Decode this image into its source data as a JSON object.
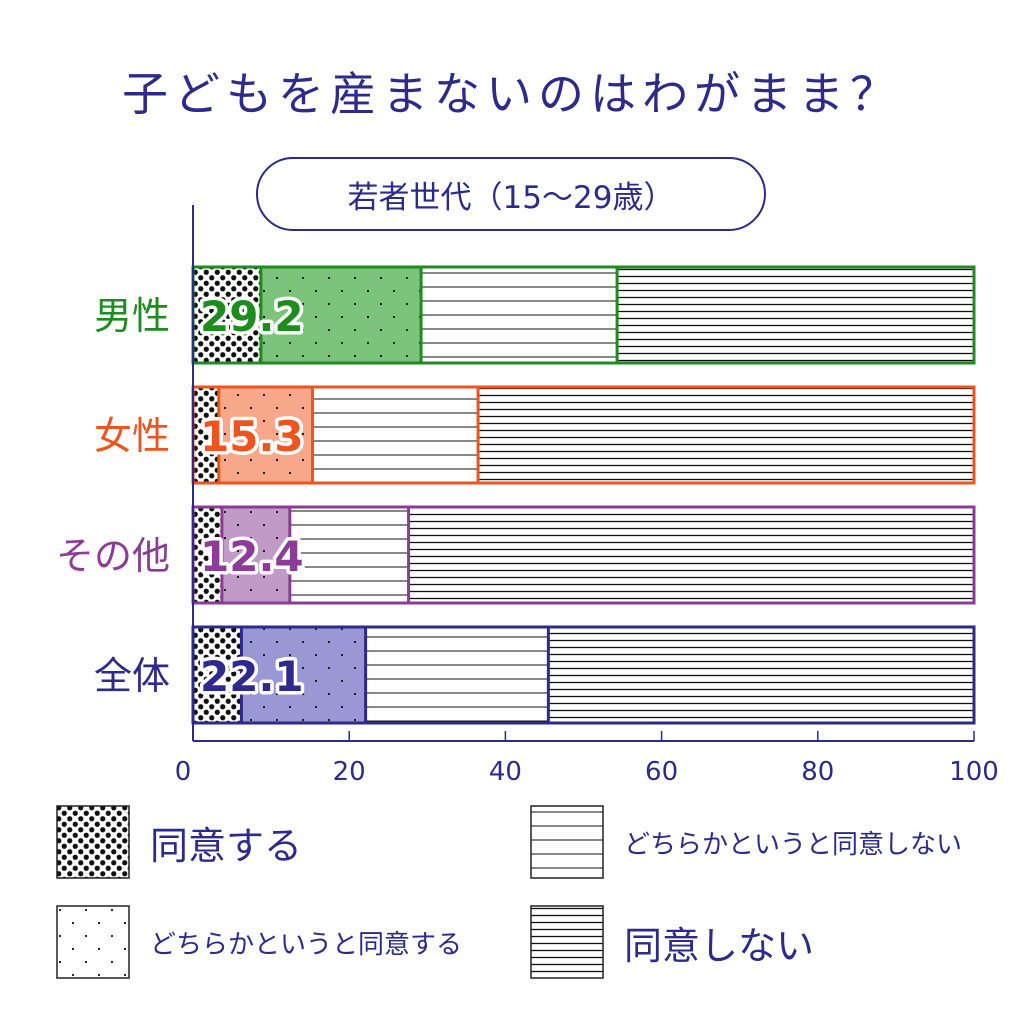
{
  "title": "子どもを産まないのはわがまま？",
  "chart_data": {
    "type": "bar",
    "stacked": true,
    "orientation": "horizontal",
    "subtitle": "若者世代（15～29歳）",
    "categories": [
      "男性",
      "女性",
      "その他",
      "全体"
    ],
    "category_colors": [
      "#1e8c1e",
      "#f0541e",
      "#8c3c96",
      "#2e2a8c"
    ],
    "category_fill_colors": [
      "#7cc47c",
      "#f7a88a",
      "#c29ac8",
      "#9a98d4"
    ],
    "series": [
      {
        "name": "同意する",
        "pattern": "dense-dots",
        "values": [
          8.7,
          3.3,
          3.7,
          6.2
        ]
      },
      {
        "name": "どちらかというと同意する",
        "pattern": "sparse-dots",
        "values": [
          20.5,
          12.0,
          8.7,
          15.9
        ]
      },
      {
        "name": "どちらかというと同意しない",
        "pattern": "wide-lines",
        "values": [
          25.1,
          21.2,
          15.2,
          23.4
        ]
      },
      {
        "name": "同意しない",
        "pattern": "dense-lines",
        "values": [
          45.7,
          63.5,
          72.4,
          54.5
        ]
      }
    ],
    "data_labels": [
      "29.2",
      "15.3",
      "12.4",
      "22.1"
    ],
    "xlim": [
      0,
      100
    ],
    "xticks": [
      "0",
      "20",
      "40",
      "60",
      "80",
      "100"
    ],
    "grid": false
  }
}
